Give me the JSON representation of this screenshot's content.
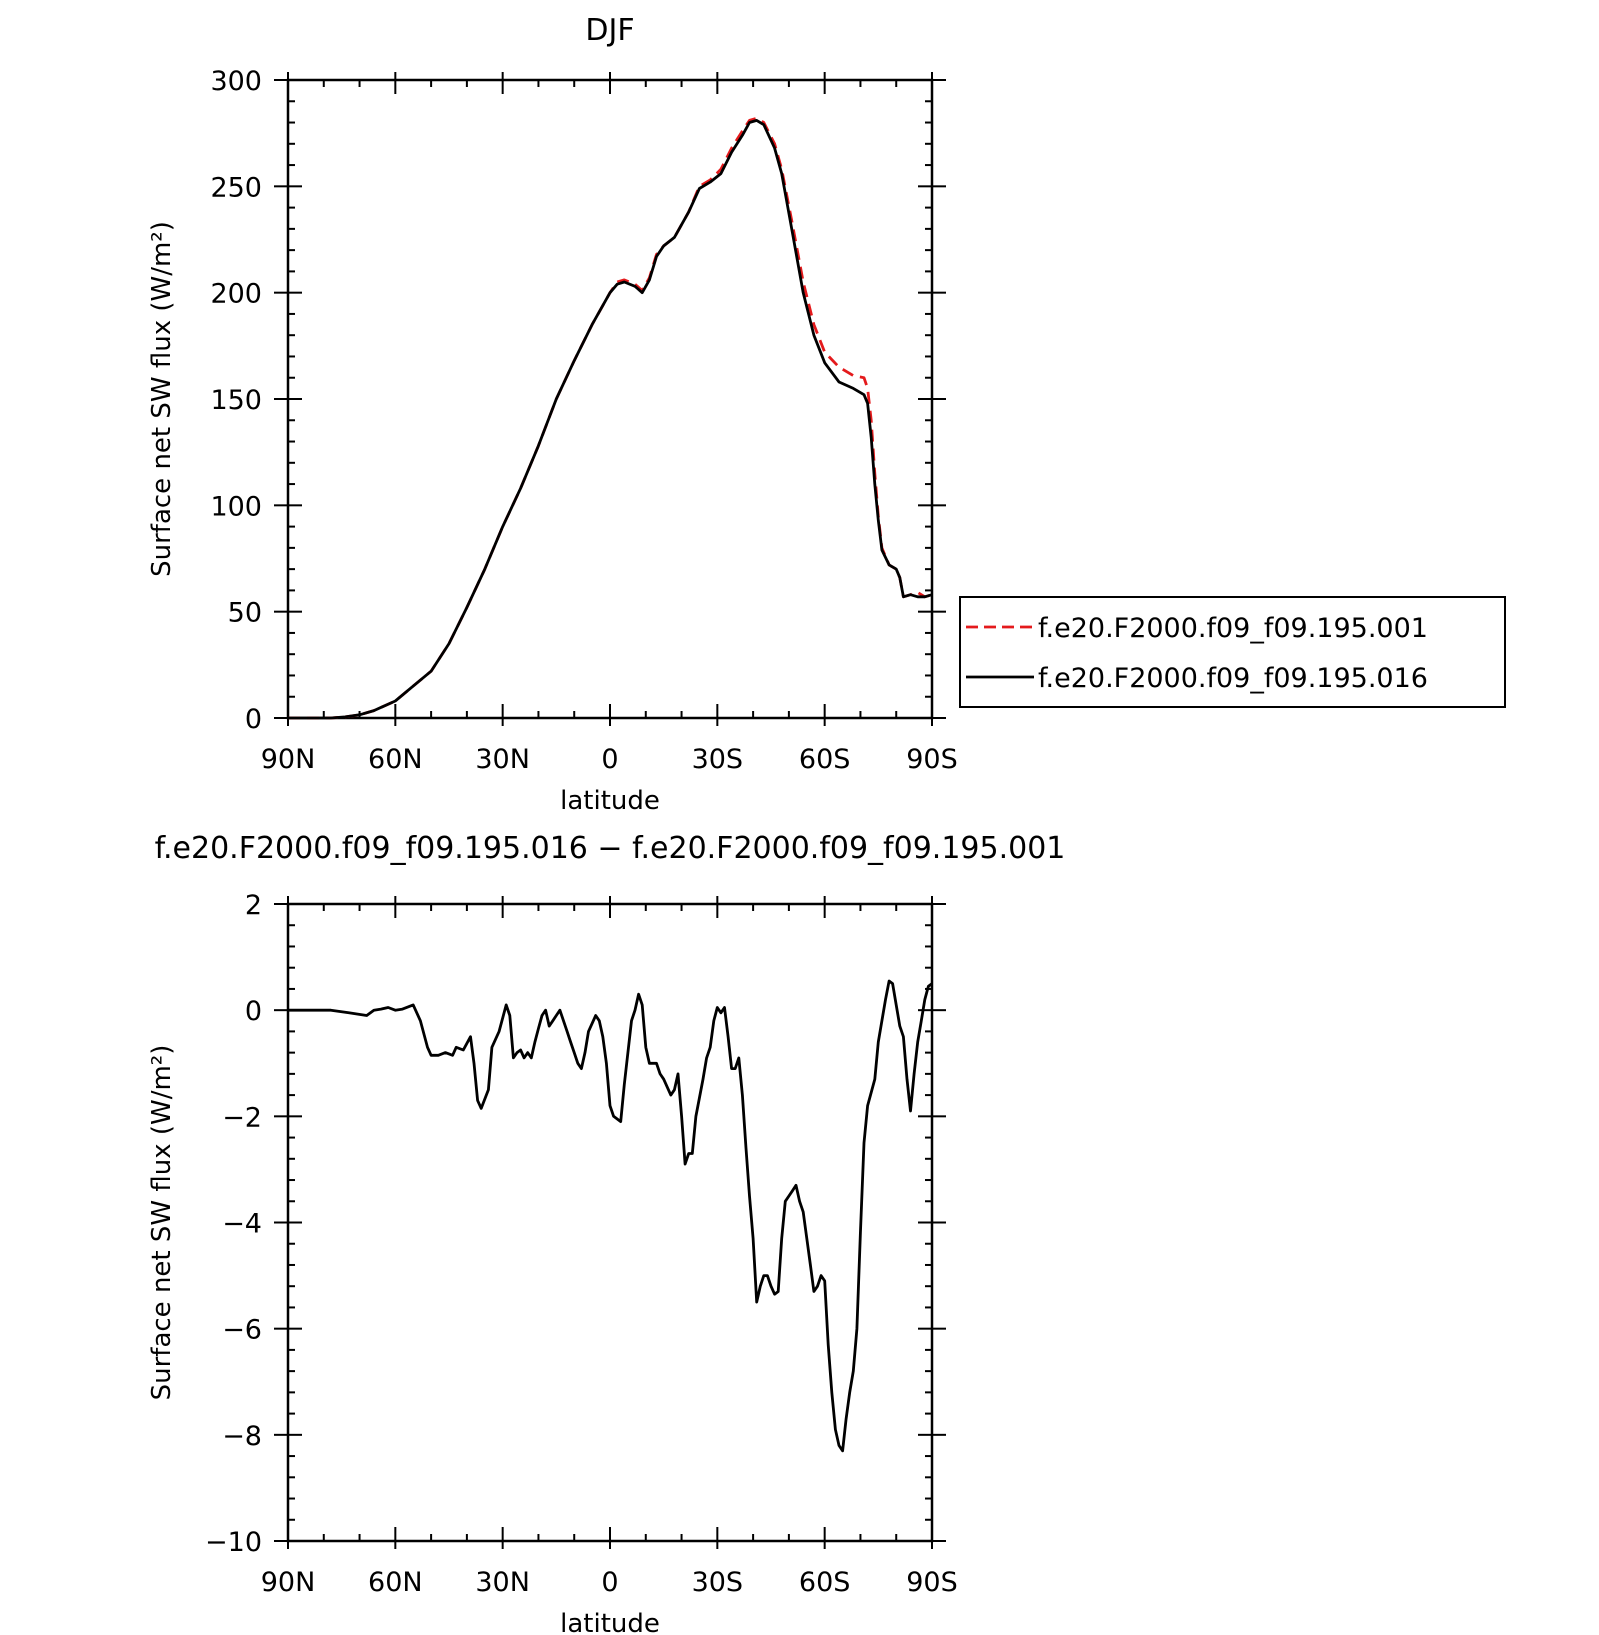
{
  "chart_data": [
    {
      "type": "line",
      "title": "DJF",
      "xlabel": "latitude",
      "ylabel": "Surface net SW flux (W/m²)",
      "xlim": [
        90,
        -90
      ],
      "ylim": [
        0,
        300
      ],
      "x_ticks": [
        90,
        60,
        30,
        0,
        -30,
        -60,
        -90
      ],
      "x_tick_labels": [
        "90N",
        "60N",
        "30N",
        "0",
        "30S",
        "60S",
        "90S"
      ],
      "y_ticks": [
        0,
        50,
        100,
        150,
        200,
        250,
        300
      ],
      "y_tick_labels": [
        "0",
        "50",
        "100",
        "150",
        "200",
        "250",
        "300"
      ],
      "grid": false,
      "legend_position": "right",
      "series": [
        {
          "name": "f.e20.F2000.f09_f09.195.001",
          "color": "#e41a1c",
          "dash": "dashed",
          "points": [
            [
              90,
              0
            ],
            [
              78,
              0
            ],
            [
              74,
              0.5
            ],
            [
              70,
              1.5
            ],
            [
              66,
              3.5
            ],
            [
              60,
              8
            ],
            [
              55,
              15
            ],
            [
              50,
              22
            ],
            [
              45,
              35
            ],
            [
              40,
              52
            ],
            [
              35,
              70
            ],
            [
              30,
              90
            ],
            [
              25,
              108
            ],
            [
              20,
              128
            ],
            [
              15,
              150
            ],
            [
              10,
              168
            ],
            [
              5,
              185
            ],
            [
              0,
              200
            ],
            [
              -2,
              205
            ],
            [
              -4,
              206
            ],
            [
              -7,
              204
            ],
            [
              -9,
              201
            ],
            [
              -11,
              207
            ],
            [
              -13,
              218
            ],
            [
              -15,
              222
            ],
            [
              -18,
              226
            ],
            [
              -22,
              238
            ],
            [
              -25,
              250
            ],
            [
              -28,
              253
            ],
            [
              -31,
              258
            ],
            [
              -34,
              268
            ],
            [
              -37,
              276
            ],
            [
              -39,
              281
            ],
            [
              -41,
              282
            ],
            [
              -43,
              280
            ],
            [
              -46,
              270
            ],
            [
              -48,
              258
            ],
            [
              -51,
              232
            ],
            [
              -54,
              205
            ],
            [
              -57,
              185
            ],
            [
              -60,
              172
            ],
            [
              -64,
              165
            ],
            [
              -68,
              161
            ],
            [
              -71,
              160
            ],
            [
              -72,
              155
            ],
            [
              -73,
              140
            ],
            [
              -74,
              115
            ],
            [
              -75,
              95
            ],
            [
              -76,
              80
            ],
            [
              -78,
              72
            ],
            [
              -80,
              70
            ],
            [
              -81,
              66
            ],
            [
              -82,
              57
            ],
            [
              -84,
              58
            ],
            [
              -86,
              59
            ],
            [
              -88,
              57
            ],
            [
              -90,
              58
            ]
          ]
        },
        {
          "name": "f.e20.F2000.f09_f09.195.016",
          "color": "#000000",
          "dash": "solid",
          "points": [
            [
              90,
              0
            ],
            [
              78,
              0
            ],
            [
              74,
              0.5
            ],
            [
              70,
              1.5
            ],
            [
              66,
              3.5
            ],
            [
              60,
              8
            ],
            [
              55,
              15
            ],
            [
              50,
              22
            ],
            [
              45,
              35
            ],
            [
              40,
              52
            ],
            [
              35,
              70
            ],
            [
              30,
              90
            ],
            [
              25,
              108
            ],
            [
              20,
              128
            ],
            [
              15,
              150
            ],
            [
              10,
              168
            ],
            [
              5,
              185
            ],
            [
              0,
              200
            ],
            [
              -2,
              204
            ],
            [
              -4,
              205
            ],
            [
              -7,
              203
            ],
            [
              -9,
              200
            ],
            [
              -11,
              206
            ],
            [
              -13,
              217
            ],
            [
              -15,
              222
            ],
            [
              -18,
              226
            ],
            [
              -22,
              238
            ],
            [
              -25,
              249
            ],
            [
              -28,
              252
            ],
            [
              -31,
              256
            ],
            [
              -34,
              266
            ],
            [
              -37,
              274
            ],
            [
              -39,
              280
            ],
            [
              -41,
              281
            ],
            [
              -43,
              279
            ],
            [
              -46,
              268
            ],
            [
              -48,
              256
            ],
            [
              -51,
              228
            ],
            [
              -54,
              200
            ],
            [
              -57,
              180
            ],
            [
              -60,
              167
            ],
            [
              -64,
              158
            ],
            [
              -68,
              155
            ],
            [
              -71,
              152
            ],
            [
              -72,
              148
            ],
            [
              -73,
              132
            ],
            [
              -74,
              110
            ],
            [
              -75,
              93
            ],
            [
              -76,
              79
            ],
            [
              -78,
              72
            ],
            [
              -80,
              70
            ],
            [
              -81,
              66
            ],
            [
              -82,
              57
            ],
            [
              -84,
              58
            ],
            [
              -86,
              57
            ],
            [
              -88,
              57
            ],
            [
              -90,
              58
            ]
          ]
        }
      ]
    },
    {
      "type": "line",
      "title": "f.e20.F2000.f09_f09.195.016 − f.e20.F2000.f09_f09.195.001",
      "xlabel": "latitude",
      "ylabel": "Surface net SW flux (W/m²)",
      "xlim": [
        90,
        -90
      ],
      "ylim": [
        -10,
        2
      ],
      "x_ticks": [
        90,
        60,
        30,
        0,
        -30,
        -60,
        -90
      ],
      "x_tick_labels": [
        "90N",
        "60N",
        "30N",
        "0",
        "30S",
        "60S",
        "90S"
      ],
      "y_ticks": [
        2,
        0,
        -2,
        -4,
        -6,
        -8,
        -10
      ],
      "y_tick_labels": [
        "2",
        "0",
        "−2",
        "−4",
        "−6",
        "−8",
        "−10"
      ],
      "grid": false,
      "series": [
        {
          "color": "#000000",
          "dash": "solid",
          "points": [
            [
              90,
              0
            ],
            [
              78,
              0
            ],
            [
              73,
              -0.05
            ],
            [
              68,
              -0.1
            ],
            [
              66,
              0
            ],
            [
              64,
              0.02
            ],
            [
              62,
              0.05
            ],
            [
              60,
              0
            ],
            [
              58,
              0.02
            ],
            [
              55,
              0.1
            ],
            [
              53,
              -0.2
            ],
            [
              51,
              -0.7
            ],
            [
              50,
              -0.85
            ],
            [
              48,
              -0.85
            ],
            [
              46,
              -0.8
            ],
            [
              44,
              -0.85
            ],
            [
              43,
              -0.7
            ],
            [
              41,
              -0.75
            ],
            [
              39,
              -0.5
            ],
            [
              38,
              -1
            ],
            [
              37,
              -1.7
            ],
            [
              36,
              -1.85
            ],
            [
              34,
              -1.5
            ],
            [
              33,
              -0.7
            ],
            [
              31,
              -0.4
            ],
            [
              29,
              0.1
            ],
            [
              28,
              -0.1
            ],
            [
              27,
              -0.9
            ],
            [
              26,
              -0.8
            ],
            [
              25,
              -0.75
            ],
            [
              24,
              -0.9
            ],
            [
              23,
              -0.8
            ],
            [
              22,
              -0.9
            ],
            [
              21,
              -0.6
            ],
            [
              20,
              -0.35
            ],
            [
              19,
              -0.1
            ],
            [
              18,
              0
            ],
            [
              17,
              -0.3
            ],
            [
              16,
              -0.2
            ],
            [
              15,
              -0.1
            ],
            [
              14,
              0
            ],
            [
              12,
              -0.4
            ],
            [
              11,
              -0.6
            ],
            [
              10,
              -0.8
            ],
            [
              9,
              -1
            ],
            [
              8,
              -1.1
            ],
            [
              7,
              -0.8
            ],
            [
              6,
              -0.4
            ],
            [
              4,
              -0.1
            ],
            [
              3,
              -0.2
            ],
            [
              2,
              -0.5
            ],
            [
              1,
              -1
            ],
            [
              0,
              -1.8
            ],
            [
              -1,
              -2
            ],
            [
              -3,
              -2.1
            ],
            [
              -4,
              -1.4
            ],
            [
              -6,
              -0.2
            ],
            [
              -7,
              0
            ],
            [
              -8,
              0.3
            ],
            [
              -9,
              0.1
            ],
            [
              -10,
              -0.7
            ],
            [
              -11,
              -1
            ],
            [
              -13,
              -1
            ],
            [
              -14,
              -1.2
            ],
            [
              -15,
              -1.3
            ],
            [
              -17,
              -1.6
            ],
            [
              -18,
              -1.5
            ],
            [
              -19,
              -1.2
            ],
            [
              -20,
              -2
            ],
            [
              -21,
              -2.9
            ],
            [
              -22,
              -2.7
            ],
            [
              -23,
              -2.7
            ],
            [
              -24,
              -2
            ],
            [
              -26,
              -1.3
            ],
            [
              -27,
              -0.9
            ],
            [
              -28,
              -0.7
            ],
            [
              -29,
              -0.2
            ],
            [
              -30,
              0.05
            ],
            [
              -31,
              -0.05
            ],
            [
              -32,
              0.05
            ],
            [
              -33,
              -0.5
            ],
            [
              -34,
              -1.1
            ],
            [
              -35,
              -1.1
            ],
            [
              -36,
              -0.9
            ],
            [
              -37,
              -1.6
            ],
            [
              -38,
              -2.6
            ],
            [
              -39,
              -3.5
            ],
            [
              -40,
              -4.3
            ],
            [
              -41,
              -5.5
            ],
            [
              -42,
              -5.2
            ],
            [
              -43,
              -5
            ],
            [
              -44,
              -5
            ],
            [
              -45,
              -5.2
            ],
            [
              -46,
              -5.35
            ],
            [
              -47,
              -5.3
            ],
            [
              -48,
              -4.3
            ],
            [
              -49,
              -3.6
            ],
            [
              -50,
              -3.5
            ],
            [
              -51,
              -3.4
            ],
            [
              -52,
              -3.3
            ],
            [
              -53,
              -3.6
            ],
            [
              -54,
              -3.8
            ],
            [
              -55,
              -4.3
            ],
            [
              -56,
              -4.8
            ],
            [
              -57,
              -5.3
            ],
            [
              -58,
              -5.2
            ],
            [
              -59,
              -5
            ],
            [
              -60,
              -5.1
            ],
            [
              -61,
              -6.3
            ],
            [
              -62,
              -7.2
            ],
            [
              -63,
              -7.9
            ],
            [
              -64,
              -8.2
            ],
            [
              -65,
              -8.3
            ],
            [
              -66,
              -7.7
            ],
            [
              -67,
              -7.2
            ],
            [
              -68,
              -6.8
            ],
            [
              -69,
              -6
            ],
            [
              -70,
              -4.2
            ],
            [
              -71,
              -2.5
            ],
            [
              -72,
              -1.8
            ],
            [
              -74,
              -1.3
            ],
            [
              -75,
              -0.6
            ],
            [
              -77,
              0.2
            ],
            [
              -78,
              0.55
            ],
            [
              -79,
              0.5
            ],
            [
              -80,
              0.1
            ],
            [
              -81,
              -0.3
            ],
            [
              -82,
              -0.5
            ],
            [
              -83,
              -1.3
            ],
            [
              -84,
              -1.9
            ],
            [
              -85,
              -1.2
            ],
            [
              -86,
              -0.6
            ],
            [
              -87,
              -0.2
            ],
            [
              -88,
              0.2
            ],
            [
              -89,
              0.45
            ],
            [
              -90,
              0.5
            ]
          ]
        }
      ]
    }
  ]
}
